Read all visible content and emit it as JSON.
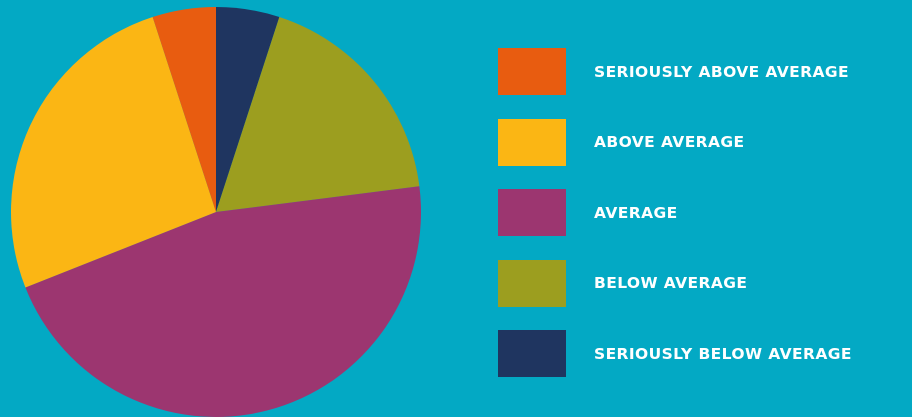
{
  "chart_data": {
    "type": "pie",
    "categories": [
      "SERIOUSLY ABOVE AVERAGE",
      "ABOVE AVERAGE",
      "AVERAGE",
      "BELOW AVERAGE",
      "SERIOUSLY BELOW AVERAGE"
    ],
    "values": [
      5,
      26,
      46,
      18,
      5
    ],
    "unit": "%",
    "colors": [
      "#E85C10",
      "#FBB614",
      "#9C3670",
      "#9C9E1F",
      "#1F3560"
    ],
    "start_angle_deg": 0,
    "direction": "clockwise_from_top",
    "order_clockwise": [
      "SERIOUSLY BELOW AVERAGE",
      "BELOW AVERAGE",
      "AVERAGE",
      "ABOVE AVERAGE",
      "SERIOUSLY ABOVE AVERAGE"
    ],
    "legend_position": "right",
    "background": "#03A9C4",
    "label_color": "#FFFFFF",
    "title": "",
    "xlabel": "",
    "ylabel": ""
  }
}
